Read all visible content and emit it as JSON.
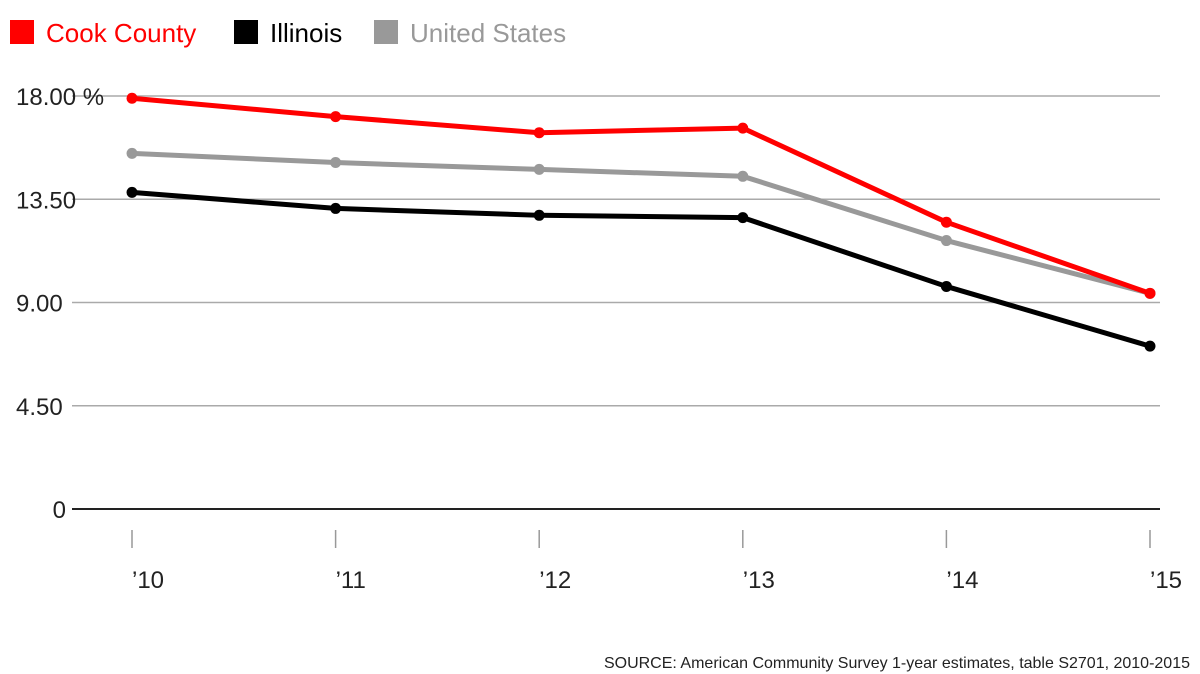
{
  "chart_data": {
    "type": "line",
    "x": [
      "’10",
      "’11",
      "’12",
      "’13",
      "’14",
      "’15"
    ],
    "y_ticks": [
      "0",
      "4.50",
      "9.00",
      "13.50",
      "18.00"
    ],
    "y_unit": "%",
    "ylim": [
      0,
      18
    ],
    "grid": true,
    "legend_position": "top-left",
    "series": [
      {
        "name": "Cook County",
        "color": "#ff0000",
        "values": [
          17.9,
          17.1,
          16.4,
          16.6,
          12.5,
          9.4
        ]
      },
      {
        "name": "Illinois",
        "color": "#000000",
        "values": [
          13.8,
          13.1,
          12.8,
          12.7,
          9.7,
          7.1
        ]
      },
      {
        "name": "United States",
        "color": "#999999",
        "values": [
          15.5,
          15.1,
          14.8,
          14.5,
          11.7,
          9.4
        ]
      }
    ],
    "source": "SOURCE: American Community Survey 1-year estimates, table S2701, 2010-2015"
  }
}
